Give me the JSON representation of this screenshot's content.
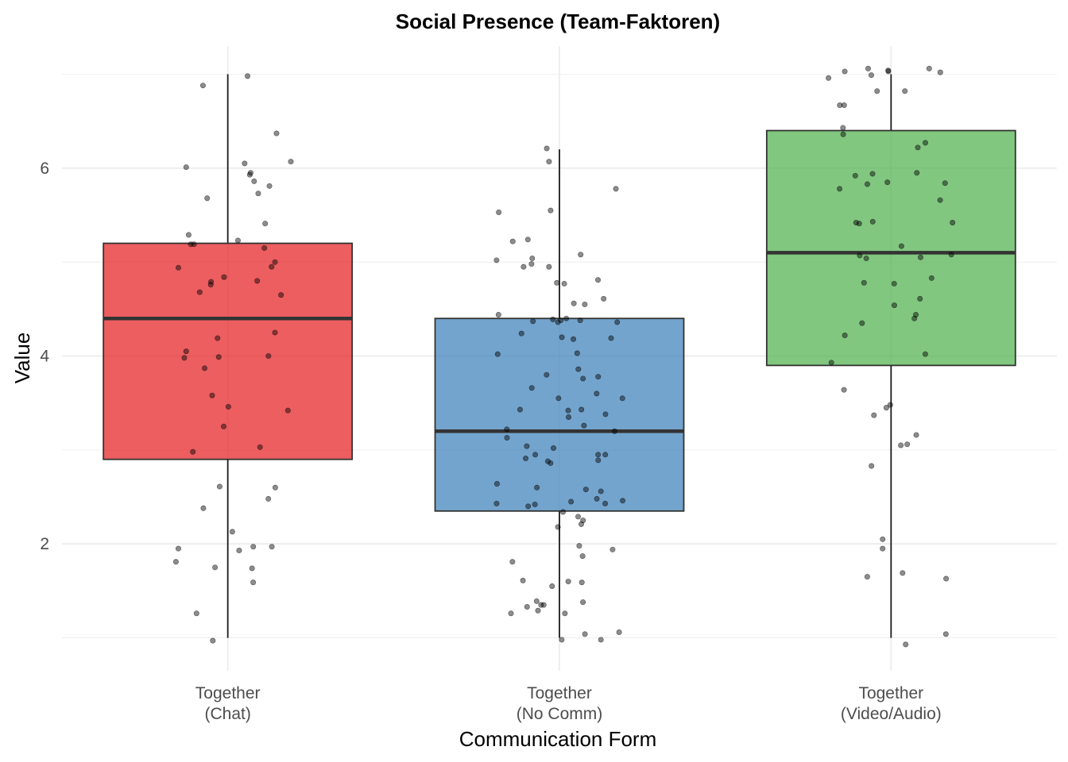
{
  "chart_data": {
    "type": "boxplot",
    "title": "Social Presence (Team-Faktoren)",
    "xlabel": "Communication Form",
    "ylabel": "Value",
    "ylim": [
      0.65,
      7.3
    ],
    "yticks": [
      2,
      4,
      6
    ],
    "grid": true,
    "legend": "none",
    "categories": [
      {
        "line1": "Together",
        "line2": "(Chat)"
      },
      {
        "line1": "Together",
        "line2": "(No Comm)"
      },
      {
        "line1": "Together",
        "line2": "(Video/Audio)"
      }
    ],
    "boxes": [
      {
        "color": "#E41A1C",
        "whisker_low": 1.0,
        "q1": 2.9,
        "median": 4.4,
        "q3": 5.2,
        "whisker_high": 7.0
      },
      {
        "color": "#377EB8",
        "whisker_low": 1.0,
        "q1": 2.35,
        "median": 3.2,
        "q3": 4.4,
        "whisker_high": 6.2
      },
      {
        "color": "#4DAF4A",
        "whisker_low": 1.0,
        "q1": 3.9,
        "median": 5.1,
        "q3": 6.4,
        "whisker_high": 7.0
      }
    ],
    "points": [
      [
        6.98,
        6.88,
        6.05,
        6.07,
        5.95,
        5.93,
        6.01,
        6.37,
        5.86,
        5.81,
        5.73,
        5.68,
        5.41,
        5.29,
        5.23,
        5.19,
        5.19,
        5.15,
        5.0,
        4.95,
        4.94,
        4.84,
        4.8,
        4.76,
        4.68,
        4.79,
        4.65,
        4.25,
        4.19,
        3.99,
        4.0,
        4.05,
        3.98,
        3.87,
        3.58,
        3.46,
        3.42,
        3.25,
        3.03,
        2.98,
        2.61,
        2.6,
        2.48,
        2.38,
        2.13,
        1.97,
        1.97,
        1.95,
        1.93,
        1.81,
        1.74,
        1.75,
        1.59,
        1.26,
        0.97
      ],
      [
        6.21,
        6.07,
        5.78,
        5.55,
        5.53,
        5.24,
        5.22,
        5.08,
        5.02,
        5.04,
        4.98,
        4.95,
        4.95,
        4.81,
        4.78,
        4.77,
        4.61,
        4.56,
        4.55,
        4.44,
        4.4,
        4.39,
        4.38,
        4.38,
        4.37,
        4.36,
        4.36,
        4.24,
        4.2,
        4.19,
        4.18,
        4.02,
        4.03,
        3.86,
        3.8,
        3.78,
        3.76,
        3.66,
        3.6,
        3.55,
        3.55,
        3.43,
        3.42,
        3.43,
        3.38,
        3.35,
        3.26,
        3.22,
        3.2,
        3.13,
        3.04,
        3.02,
        2.95,
        2.95,
        2.95,
        2.91,
        2.89,
        2.88,
        2.86,
        2.64,
        2.6,
        2.58,
        2.56,
        2.48,
        2.46,
        2.45,
        2.43,
        2.42,
        2.43,
        2.4,
        2.34,
        2.29,
        2.25,
        2.21,
        2.18,
        1.98,
        1.94,
        1.87,
        1.81,
        1.6,
        1.61,
        1.59,
        1.55,
        1.39,
        1.38,
        1.35,
        1.35,
        1.33,
        1.29,
        1.26,
        1.26,
        1.06,
        1.04,
        0.98,
        0.98
      ],
      [
        7.06,
        7.06,
        7.04,
        7.03,
        7.03,
        7.02,
        6.99,
        6.96,
        6.82,
        6.82,
        6.67,
        6.67,
        6.43,
        6.36,
        6.27,
        6.22,
        5.95,
        5.94,
        5.92,
        5.85,
        5.84,
        5.83,
        5.78,
        5.66,
        5.43,
        5.42,
        5.42,
        5.41,
        5.17,
        5.08,
        5.07,
        5.05,
        5.04,
        4.83,
        4.78,
        4.77,
        4.61,
        4.54,
        4.44,
        4.4,
        4.35,
        4.22,
        4.02,
        3.93,
        3.64,
        3.48,
        3.45,
        3.37,
        3.16,
        3.06,
        3.05,
        2.83,
        2.05,
        1.95,
        1.69,
        1.65,
        1.63,
        1.04,
        0.93
      ]
    ]
  }
}
